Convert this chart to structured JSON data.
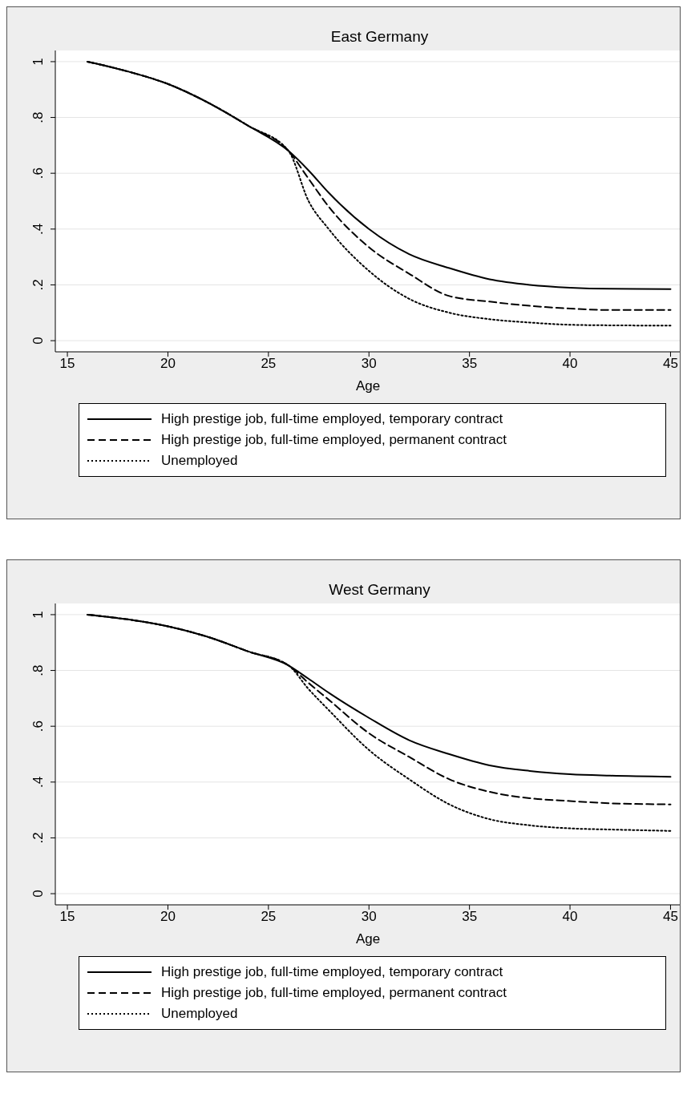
{
  "chart_data": [
    {
      "type": "line",
      "title": "East Germany",
      "xlabel": "Age",
      "x": [
        16,
        18,
        20,
        22,
        24,
        26,
        27,
        28,
        30,
        32,
        34,
        36,
        38,
        40,
        42,
        45
      ],
      "yticks": [
        {
          "value": 0,
          "label": "0"
        },
        {
          "value": 0.2,
          "label": ".2"
        },
        {
          "value": 0.4,
          "label": ".4"
        },
        {
          "value": 0.6,
          "label": ".6"
        },
        {
          "value": 0.8,
          "label": ".8"
        },
        {
          "value": 1,
          "label": "1"
        }
      ],
      "series": [
        {
          "name": "High prestige job, full-time employed, temporary contract",
          "color": "#000000",
          "line_style": "solid",
          "values": [
            1,
            0.965,
            0.92,
            0.853,
            0.77,
            0.68,
            0.61,
            0.53,
            0.4,
            0.31,
            0.26,
            0.22,
            0.2,
            0.19,
            0.186,
            0.185
          ]
        },
        {
          "name": "High prestige job, full-time employed, permanent contract",
          "color": "#000000",
          "line_style": "dashed",
          "values": [
            1,
            0.965,
            0.92,
            0.853,
            0.77,
            0.68,
            0.58,
            0.48,
            0.335,
            0.24,
            0.16,
            0.14,
            0.125,
            0.115,
            0.11,
            0.11
          ]
        },
        {
          "name": "Unemployed",
          "color": "#000000",
          "line_style": "dotted",
          "values": [
            1,
            0.965,
            0.92,
            0.853,
            0.77,
            0.68,
            0.5,
            0.4,
            0.25,
            0.15,
            0.1,
            0.077,
            0.065,
            0.057,
            0.055,
            0.054
          ]
        }
      ],
      "xlim": [
        14.4,
        45.5
      ],
      "xticks": [
        15,
        20,
        25,
        30,
        35,
        40,
        45
      ],
      "ylim": [
        -0.04,
        1.04
      ],
      "grid": "y",
      "legend": "bottom",
      "marker": "none"
    },
    {
      "type": "line",
      "title": "West Germany",
      "xlabel": "Age",
      "x": [
        16,
        18,
        20,
        22,
        24,
        26,
        27,
        28,
        30,
        32,
        34,
        36,
        38,
        40,
        42,
        45
      ],
      "yticks": [
        {
          "value": 0,
          "label": "0"
        },
        {
          "value": 0.2,
          "label": ".2"
        },
        {
          "value": 0.4,
          "label": ".4"
        },
        {
          "value": 0.6,
          "label": ".6"
        },
        {
          "value": 0.8,
          "label": ".8"
        },
        {
          "value": 1,
          "label": "1"
        }
      ],
      "series": [
        {
          "name": "High prestige job, full-time employed, temporary contract",
          "color": "#000000",
          "line_style": "solid",
          "values": [
            1,
            0.983,
            0.958,
            0.92,
            0.868,
            0.818,
            0.77,
            0.72,
            0.63,
            0.55,
            0.5,
            0.46,
            0.44,
            0.428,
            0.423,
            0.419
          ]
        },
        {
          "name": "High prestige job, full-time employed, permanent contract",
          "color": "#000000",
          "line_style": "dashed",
          "values": [
            1,
            0.983,
            0.958,
            0.92,
            0.868,
            0.818,
            0.755,
            0.695,
            0.575,
            0.49,
            0.41,
            0.365,
            0.342,
            0.332,
            0.324,
            0.32
          ]
        },
        {
          "name": "Unemployed",
          "color": "#000000",
          "line_style": "dotted",
          "values": [
            1,
            0.983,
            0.958,
            0.92,
            0.868,
            0.818,
            0.733,
            0.658,
            0.515,
            0.41,
            0.32,
            0.267,
            0.245,
            0.234,
            0.23,
            0.225
          ]
        }
      ],
      "xlim": [
        14.4,
        45.5
      ],
      "xticks": [
        15,
        20,
        25,
        30,
        35,
        40,
        45
      ],
      "ylim": [
        -0.04,
        1.04
      ],
      "grid": "y",
      "legend": "bottom",
      "marker": "none"
    }
  ]
}
